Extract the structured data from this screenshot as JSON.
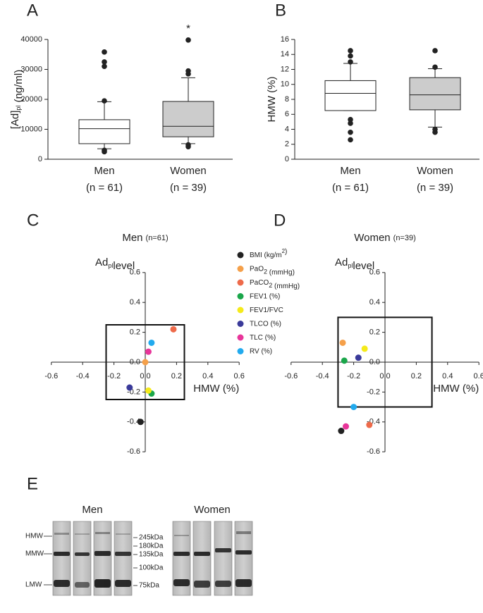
{
  "chart_data": [
    {
      "type": "box",
      "label": "A",
      "y_label": [
        {
          "text": "[Ad]"
        },
        {
          "sub": "pl"
        },
        {
          "text": " (ng/ml)"
        }
      ],
      "categories": [
        "Men",
        "Women"
      ],
      "counts": [
        "(n = 61)",
        "(n = 39)"
      ],
      "boxes": [
        {
          "whisker_low": 3500,
          "q1": 5200,
          "median": 10200,
          "q3": 13200,
          "whisker_high": 19200,
          "outliers": [
            2500,
            3000,
            19500,
            31000,
            32500,
            35800
          ]
        },
        {
          "whisker_low": 5200,
          "q1": 7500,
          "median": 11000,
          "q3": 19300,
          "whisker_high": 27200,
          "outliers": [
            4200,
            4800,
            28500,
            29500,
            39800
          ]
        }
      ],
      "color": [
        "#ffffff",
        "#cccccc"
      ],
      "annotations": [
        {
          "text": "*",
          "x": "Women"
        }
      ],
      "ylim": [
        0,
        40000
      ],
      "yticks": [
        0,
        10000,
        20000,
        30000,
        40000
      ]
    },
    {
      "type": "box",
      "label": "B",
      "y_label": [
        {
          "text": "HMW (%)"
        }
      ],
      "categories": [
        "Men",
        "Women"
      ],
      "counts": [
        "(n = 61)",
        "(n = 39)"
      ],
      "boxes": [
        {
          "whisker_low": 6.5,
          "q1": 6.5,
          "median": 8.8,
          "q3": 10.5,
          "whisker_high": 12.8,
          "outliers": [
            2.6,
            3.6,
            4.8,
            5.3,
            13.0,
            13.8,
            14.5
          ]
        },
        {
          "whisker_low": 4.3,
          "q1": 6.6,
          "median": 8.6,
          "q3": 10.9,
          "whisker_high": 12.1,
          "outliers": [
            3.6,
            4.0,
            12.3,
            14.5
          ]
        }
      ],
      "color": [
        "#ffffff",
        "#cccccc"
      ],
      "annotations": [],
      "ylim": [
        0,
        16
      ],
      "yticks": [
        0,
        2,
        4,
        6,
        8,
        10,
        12,
        14,
        16
      ]
    },
    {
      "type": "scatter",
      "label": "C",
      "title": "Men",
      "subtitle": "(n=61)",
      "y_label": [
        {
          "text": "Ad"
        },
        {
          "sub": "pl"
        },
        {
          "text": "level"
        }
      ],
      "x_label": "HMW (%)",
      "xlim": [
        -0.6,
        0.6
      ],
      "ylim": [
        -0.6,
        0.6
      ],
      "xticks": [
        -0.6,
        -0.4,
        -0.2,
        {
          "value": 0,
          "label": "0.0"
        },
        0.2,
        0.4,
        0.6
      ],
      "yticks": [
        -0.6,
        -0.4,
        -0.2,
        {
          "value": 0,
          "label": "0.0"
        },
        0.2,
        0.4,
        0.6
      ],
      "highlight": {
        "xlim": [
          -0.25,
          0.25
        ],
        "ylim": [
          -0.25,
          0.25
        ]
      },
      "legend": true,
      "series": [
        {
          "name": [
            {
              "text": "BMI (kg/m"
            },
            {
              "sup": "2"
            },
            {
              "text": ")"
            }
          ],
          "color": "#222222",
          "x": -0.03,
          "y": -0.4
        },
        {
          "name": [
            {
              "text": "PaO"
            },
            {
              "sub": "2"
            },
            {
              "text": " (mmHg)"
            }
          ],
          "color": "#f5a04a",
          "x": 0.0,
          "y": 0.0
        },
        {
          "name": [
            {
              "text": "PaCO"
            },
            {
              "sub": "2"
            },
            {
              "text": " (mmHg)"
            }
          ],
          "color": "#ee6a4a",
          "x": 0.18,
          "y": 0.22
        },
        {
          "name": [
            {
              "text": "FEV1 (%)"
            }
          ],
          "color": "#1aa64a",
          "x": 0.04,
          "y": -0.21
        },
        {
          "name": [
            {
              "text": "FEV1/FVC"
            }
          ],
          "color": "#f5ea1a",
          "x": 0.02,
          "y": -0.19
        },
        {
          "name": [
            {
              "text": "TLCO (%)"
            }
          ],
          "color": "#3a3a9a",
          "x": -0.1,
          "y": -0.17
        },
        {
          "name": [
            {
              "text": "TLC (%)"
            }
          ],
          "color": "#e8359a",
          "x": 0.02,
          "y": 0.07
        },
        {
          "name": [
            {
              "text": "RV (%)"
            }
          ],
          "color": "#22aaee",
          "x": 0.04,
          "y": 0.13
        }
      ]
    },
    {
      "type": "scatter",
      "label": "D",
      "title": "Women",
      "subtitle": "(n=39)",
      "y_label": [
        {
          "text": "Ad"
        },
        {
          "sub": "pl"
        },
        {
          "text": "level"
        }
      ],
      "x_label": "HMW (%)",
      "xlim": [
        -0.6,
        0.6
      ],
      "ylim": [
        -0.6,
        0.6
      ],
      "xticks": [
        -0.6,
        -0.4,
        -0.2,
        {
          "value": 0,
          "label": "0.0"
        },
        0.2,
        0.4,
        0.6
      ],
      "yticks": [
        -0.6,
        -0.4,
        -0.2,
        {
          "value": 0,
          "label": "0.0"
        },
        0.2,
        0.4,
        0.6
      ],
      "highlight": {
        "xlim": [
          -0.3,
          0.3
        ],
        "ylim": [
          -0.3,
          0.3
        ]
      },
      "legend": false,
      "series": [
        {
          "color": "#222222",
          "x": -0.28,
          "y": -0.46
        },
        {
          "color": "#f5a04a",
          "x": -0.27,
          "y": 0.13
        },
        {
          "color": "#ee6a4a",
          "x": -0.1,
          "y": -0.42
        },
        {
          "color": "#1aa64a",
          "x": -0.26,
          "y": 0.01
        },
        {
          "color": "#f5ea1a",
          "x": -0.13,
          "y": 0.09
        },
        {
          "color": "#3a3a9a",
          "x": -0.17,
          "y": 0.03
        },
        {
          "color": "#e8359a",
          "x": -0.25,
          "y": -0.43
        },
        {
          "color": "#22aaee",
          "x": -0.2,
          "y": -0.3
        }
      ]
    }
  ],
  "blot": {
    "label": "E",
    "groups": [
      "Men",
      "Women"
    ],
    "bands": [
      "HMW",
      "MMW",
      "LMW"
    ],
    "markers": [
      "245kDa",
      "180kDa",
      "135kDa",
      "100kDa",
      "75kDa"
    ]
  }
}
